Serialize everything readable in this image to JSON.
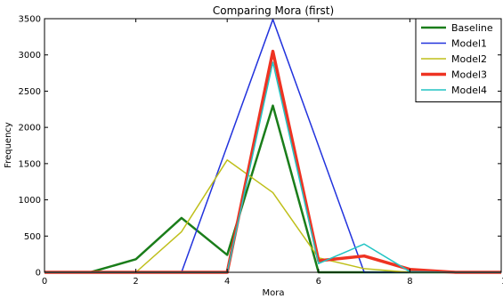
{
  "chart_data": {
    "type": "line",
    "title": "Comparing Mora (first)",
    "xlabel": "Mora",
    "ylabel": "Frequency",
    "xlim": [
      0,
      10
    ],
    "ylim": [
      0,
      3500
    ],
    "xticks": [
      "0",
      "2",
      "4",
      "6",
      "8",
      "10"
    ],
    "yticks": [
      "0",
      "500",
      "1000",
      "1500",
      "2000",
      "2500",
      "3000",
      "3500"
    ],
    "grid": false,
    "legend_position": "top-right",
    "series": [
      {
        "name": "Baseline",
        "color": "#1a7d1a",
        "width": 2.5,
        "points": [
          [
            0,
            0
          ],
          [
            1,
            0
          ],
          [
            2,
            180
          ],
          [
            3,
            750
          ],
          [
            4,
            240
          ],
          [
            5,
            2300
          ],
          [
            6,
            0
          ],
          [
            7,
            0
          ],
          [
            8,
            0
          ],
          [
            9,
            0
          ],
          [
            10,
            0
          ]
        ]
      },
      {
        "name": "Model1",
        "color": "#2233dd",
        "width": 1.5,
        "points": [
          [
            0,
            0
          ],
          [
            1,
            0
          ],
          [
            2,
            0
          ],
          [
            3,
            0
          ],
          [
            5,
            3490
          ],
          [
            7,
            0
          ],
          [
            8,
            0
          ],
          [
            9,
            0
          ],
          [
            10,
            0
          ]
        ]
      },
      {
        "name": "Model2",
        "color": "#bfbf1a",
        "width": 1.5,
        "points": [
          [
            0,
            0
          ],
          [
            1,
            0
          ],
          [
            2,
            0
          ],
          [
            3,
            560
          ],
          [
            4,
            1550
          ],
          [
            5,
            1100
          ],
          [
            6,
            200
          ],
          [
            7,
            50
          ],
          [
            8,
            0
          ],
          [
            9,
            0
          ],
          [
            10,
            0
          ]
        ]
      },
      {
        "name": "Model3",
        "color": "#ee3322",
        "width": 3.5,
        "points": [
          [
            0,
            0
          ],
          [
            1,
            0
          ],
          [
            2,
            0
          ],
          [
            3,
            0
          ],
          [
            4,
            0
          ],
          [
            5,
            3050
          ],
          [
            6,
            160
          ],
          [
            7,
            225
          ],
          [
            8,
            40
          ],
          [
            9,
            0
          ],
          [
            10,
            0
          ]
        ]
      },
      {
        "name": "Model4",
        "color": "#22c4c4",
        "width": 1.5,
        "points": [
          [
            0,
            0
          ],
          [
            1,
            0
          ],
          [
            2,
            0
          ],
          [
            3,
            0
          ],
          [
            4,
            0
          ],
          [
            5,
            2900
          ],
          [
            6,
            120
          ],
          [
            7,
            390
          ],
          [
            8,
            10
          ],
          [
            9,
            0
          ],
          [
            10,
            0
          ]
        ]
      }
    ]
  }
}
